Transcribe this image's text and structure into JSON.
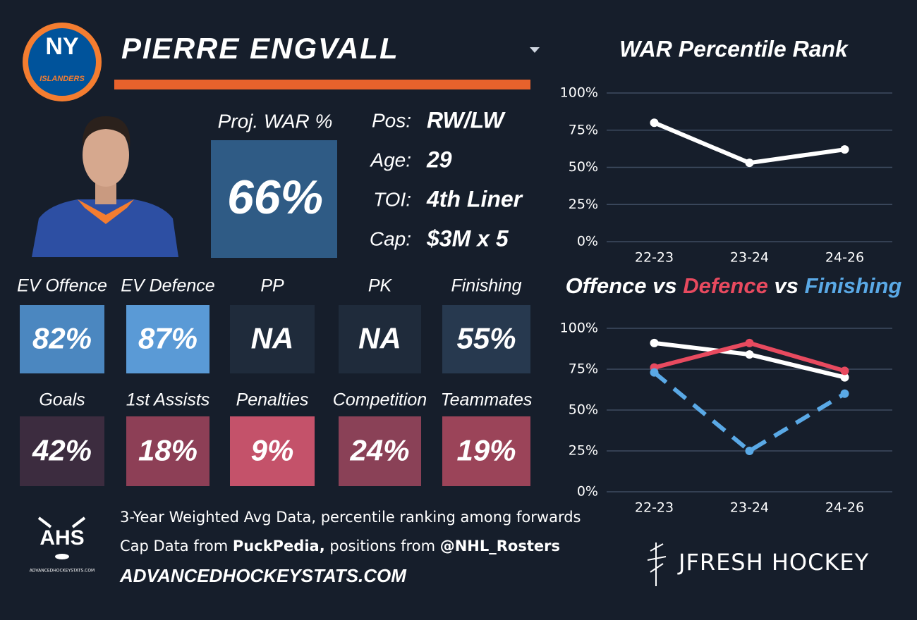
{
  "logo": {
    "top": "NY",
    "bottom": "ISLANDERS"
  },
  "player": {
    "name": "PIERRE ENGVALL"
  },
  "proj_war": {
    "label": "Proj. WAR %",
    "value": "66%",
    "color": "#2f5b85"
  },
  "info": [
    {
      "label": "Pos:",
      "value": "RW/LW"
    },
    {
      "label": "Age:",
      "value": "29"
    },
    {
      "label": "TOI:",
      "value": "4th Liner"
    },
    {
      "label": "Cap:",
      "value": "$3M x 5"
    }
  ],
  "tiles": {
    "rows": [
      [
        {
          "label": "EV Offence",
          "value": "82%",
          "color": "#4b87c0"
        },
        {
          "label": "EV Defence",
          "value": "87%",
          "color": "#5a9ad6"
        },
        {
          "label": "PP",
          "value": "NA",
          "color": "#1f2b3b"
        },
        {
          "label": "PK",
          "value": "NA",
          "color": "#1f2b3b"
        },
        {
          "label": "Finishing",
          "value": "55%",
          "color": "#27394f"
        }
      ],
      [
        {
          "label": "Goals",
          "value": "42%",
          "color": "#3c2c3f"
        },
        {
          "label": "1st Assists",
          "value": "18%",
          "color": "#8d3f56"
        },
        {
          "label": "Penalties",
          "value": "9%",
          "color": "#c4526a"
        },
        {
          "label": "Competition",
          "value": "24%",
          "color": "#8a4157"
        },
        {
          "label": "Teammates",
          "value": "19%",
          "color": "#9b4459"
        }
      ]
    ]
  },
  "footer": {
    "line1": "3-Year Weighted Avg Data, percentile ranking among forwards",
    "line2": [
      "Cap Data from ",
      "PuckPedia,",
      " positions from ",
      "@NHL_Rosters"
    ],
    "line3": "ADVANCEDHOCKEYSTATS.COM"
  },
  "ahs_logo": {
    "text": "AHS",
    "sub": "ADVANCEDHOCKEYSTATS.COM"
  },
  "brand": "JFRESH HOCKEY",
  "chart_data": [
    {
      "type": "line",
      "title": "WAR Percentile Rank",
      "categories": [
        "22-23",
        "23-24",
        "24-26"
      ],
      "values": [
        80,
        53,
        62
      ],
      "color": "#ffffff",
      "ylim": [
        0,
        100
      ],
      "yticks": [
        {
          "value": 0,
          "label": "0%"
        },
        {
          "value": 25,
          "label": "25%"
        },
        {
          "value": 50,
          "label": "50%"
        },
        {
          "value": 75,
          "label": "75%"
        },
        {
          "value": 100,
          "label": "100%"
        }
      ],
      "grid": true
    },
    {
      "type": "line",
      "title_joiner": "vs",
      "categories": [
        "22-23",
        "23-24",
        "24-26"
      ],
      "series": [
        {
          "name": "Offence",
          "color": "#ffffff",
          "values": [
            91,
            84,
            70
          ]
        },
        {
          "name": "Defence",
          "color": "#e84a5f",
          "values": [
            76,
            91,
            74
          ]
        },
        {
          "name": "Finishing",
          "color": "#5aa9e6",
          "values": [
            73,
            25,
            60
          ],
          "dashed": true
        }
      ],
      "ylim": [
        0,
        100
      ],
      "yticks": [
        {
          "value": 0,
          "label": "0%"
        },
        {
          "value": 25,
          "label": "25%"
        },
        {
          "value": 50,
          "label": "50%"
        },
        {
          "value": 75,
          "label": "75%"
        },
        {
          "value": 100,
          "label": "100%"
        }
      ],
      "grid": true
    }
  ]
}
